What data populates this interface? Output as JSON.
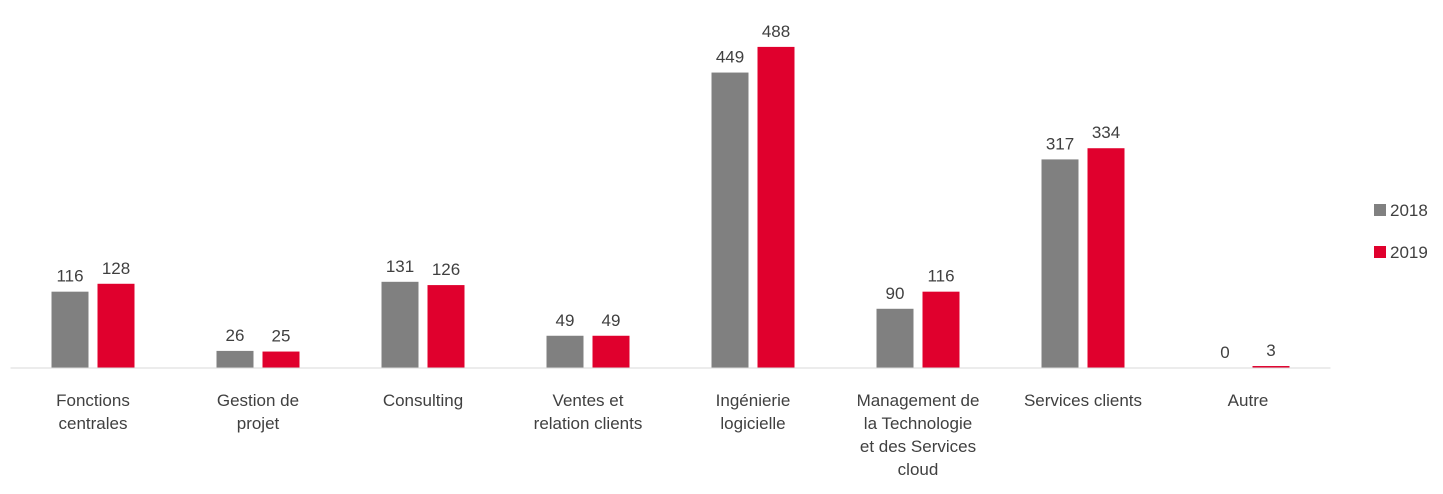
{
  "chart_data": {
    "type": "bar",
    "categories": [
      [
        "Fonctions",
        "centrales"
      ],
      [
        "Gestion de",
        "projet"
      ],
      [
        "Consulting"
      ],
      [
        "Ventes et",
        "relation clients"
      ],
      [
        "Ingénierie",
        "logicielle"
      ],
      [
        "Management de",
        "la Technologie",
        "et des Services",
        "cloud"
      ],
      [
        "Services clients"
      ],
      [
        "Autre"
      ]
    ],
    "series": [
      {
        "name": "2018",
        "color": "#808080",
        "values": [
          116,
          26,
          131,
          49,
          449,
          90,
          317,
          0
        ]
      },
      {
        "name": "2019",
        "color": "#e0002d",
        "values": [
          128,
          25,
          126,
          49,
          488,
          116,
          334,
          3
        ]
      }
    ],
    "ylim": [
      0,
      500
    ],
    "legend": "right"
  }
}
